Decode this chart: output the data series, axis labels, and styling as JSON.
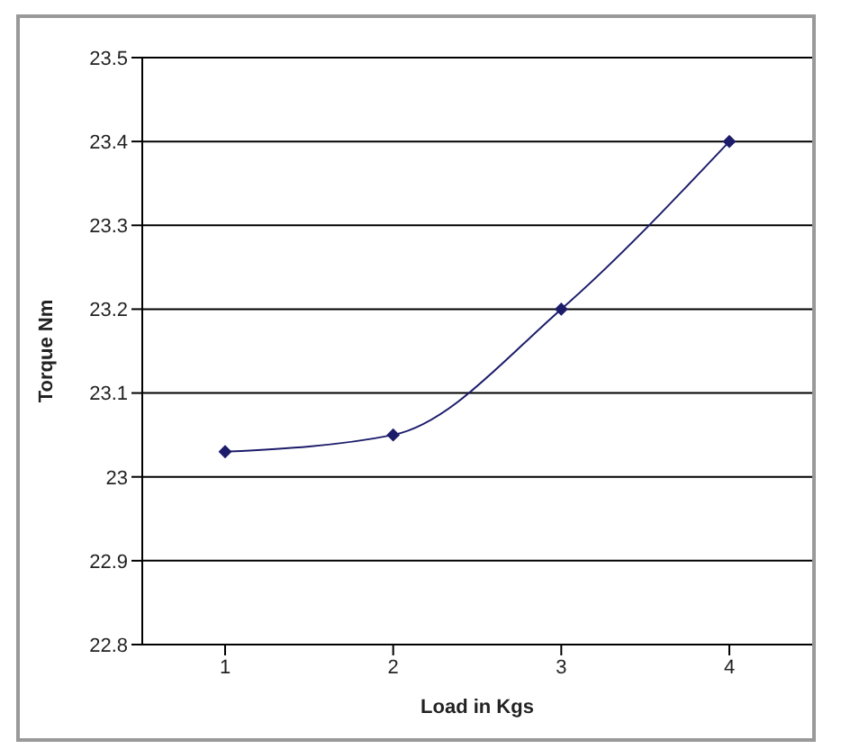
{
  "chart_data": {
    "type": "line",
    "xlabel": "Load in Kgs",
    "ylabel": "Torque Nm",
    "categories": [
      "1",
      "2",
      "3",
      "4"
    ],
    "series": [
      {
        "color": "#1c1c6b",
        "values": [
          23.03,
          23.05,
          23.2,
          23.4
        ]
      }
    ],
    "ylim": [
      22.8,
      23.5
    ],
    "yticks": [
      22.8,
      22.9,
      23,
      23.1,
      23.2,
      23.3,
      23.4,
      23.5
    ],
    "grid": "y",
    "legend": false,
    "marker": "diamond"
  }
}
